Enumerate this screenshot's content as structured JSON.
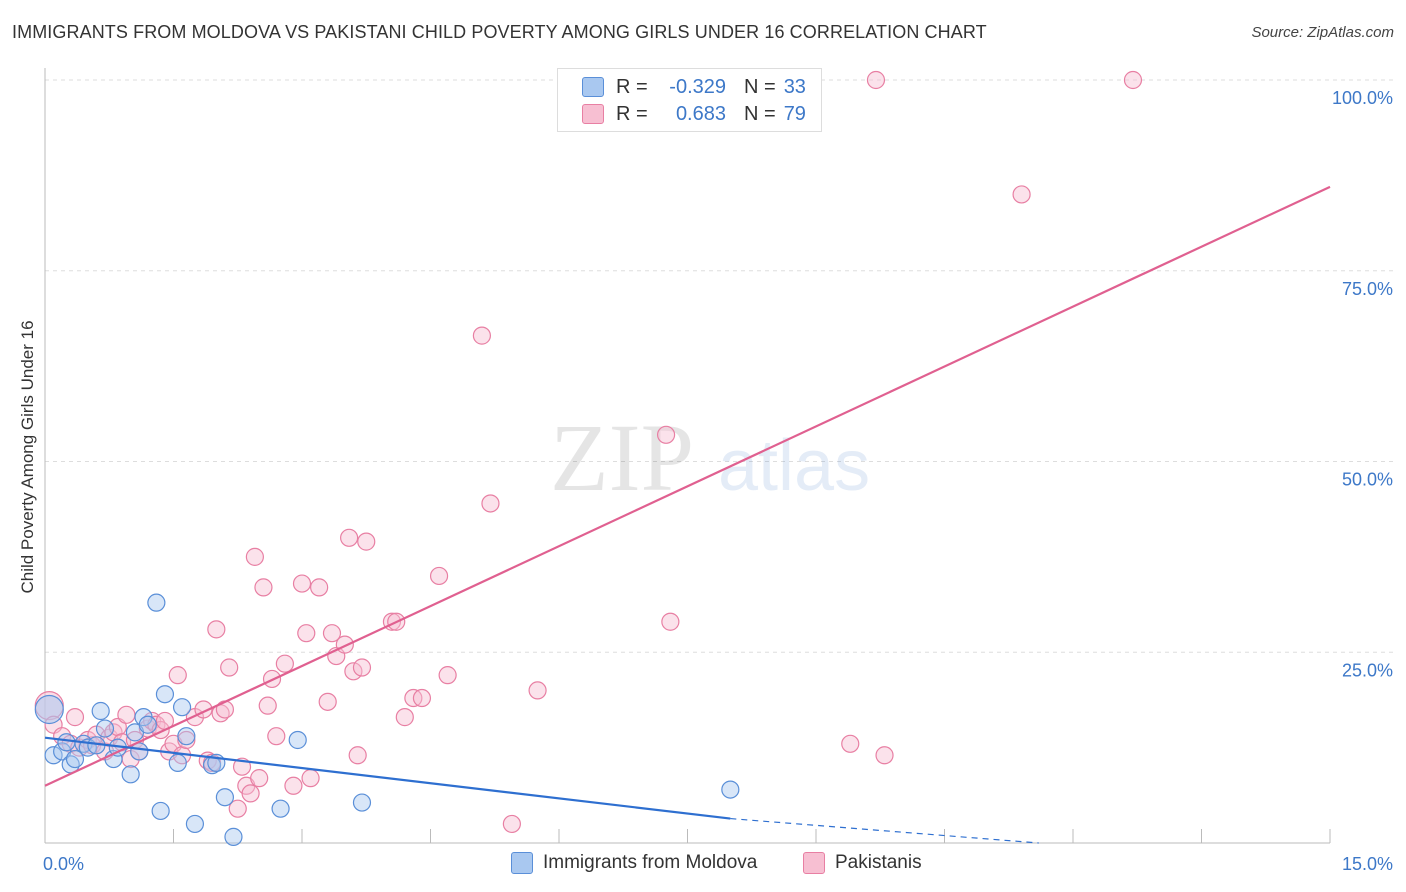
{
  "header": {
    "title": "IMMIGRANTS FROM MOLDOVA VS PAKISTANI CHILD POVERTY AMONG GIRLS UNDER 16 CORRELATION CHART",
    "source": "Source: ZipAtlas.com"
  },
  "watermark": {
    "zip": "ZIP",
    "atlas": "atlas"
  },
  "legend": {
    "r_label": "R =",
    "n_label": "N =",
    "rows": [
      {
        "r": "-0.329",
        "n": "33"
      },
      {
        "r": "0.683",
        "n": "79"
      }
    ]
  },
  "bottom_legend": {
    "moldova": "Immigrants from Moldova",
    "pakistani": "Pakistanis"
  },
  "colors": {
    "moldova_fill": "#a9c8f0",
    "moldova_stroke": "#5a8fd8",
    "moldova_line": "#2e6fd0",
    "pakistani_fill": "#f7bfd2",
    "pakistani_stroke": "#e87fa3",
    "pakistani_line": "#e06090",
    "tick_label": "#3d78c8",
    "grid": "#dddddd"
  },
  "chart_data": {
    "type": "scatter",
    "title": "IMMIGRANTS FROM MOLDOVA VS PAKISTANI CHILD POVERTY AMONG GIRLS UNDER 16 CORRELATION CHART",
    "xlabel": "",
    "ylabel": "Child Poverty Among Girls Under 16",
    "xlim": [
      0,
      15
    ],
    "ylim": [
      0,
      100
    ],
    "x_tick_labels": [
      "0.0%",
      "15.0%"
    ],
    "y_ticks": [
      25,
      50,
      75,
      100
    ],
    "y_tick_labels": [
      "25.0%",
      "50.0%",
      "75.0%",
      "100.0%"
    ],
    "series": [
      {
        "name": "Immigrants from Moldova",
        "r": -0.329,
        "n": 33,
        "trend": {
          "x0": 0,
          "y0": 13.8,
          "x1": 8.0,
          "y1": 3.2,
          "dash_to_x": 11.6,
          "dash_to_y": 0
        },
        "points": [
          [
            0.05,
            17.5
          ],
          [
            0.1,
            11.5
          ],
          [
            0.2,
            12.0
          ],
          [
            0.25,
            13.2
          ],
          [
            0.3,
            10.3
          ],
          [
            0.35,
            11.0
          ],
          [
            0.45,
            13.0
          ],
          [
            0.5,
            12.5
          ],
          [
            0.65,
            17.3
          ],
          [
            0.7,
            15.0
          ],
          [
            0.8,
            11.0
          ],
          [
            0.85,
            12.5
          ],
          [
            1.0,
            9.0
          ],
          [
            1.05,
            14.5
          ],
          [
            1.15,
            16.5
          ],
          [
            1.2,
            15.5
          ],
          [
            1.3,
            31.5
          ],
          [
            1.35,
            4.2
          ],
          [
            1.4,
            19.5
          ],
          [
            1.55,
            10.5
          ],
          [
            1.6,
            17.8
          ],
          [
            1.65,
            14.0
          ],
          [
            1.75,
            2.5
          ],
          [
            1.95,
            10.2
          ],
          [
            2.0,
            10.5
          ],
          [
            2.1,
            6.0
          ],
          [
            2.2,
            0.8
          ],
          [
            2.75,
            4.5
          ],
          [
            2.95,
            13.5
          ],
          [
            3.7,
            5.3
          ],
          [
            8.0,
            7.0
          ],
          [
            1.1,
            12.0
          ],
          [
            0.6,
            12.8
          ]
        ]
      },
      {
        "name": "Pakistanis",
        "r": 0.683,
        "n": 79,
        "trend": {
          "x0": 0,
          "y0": 7.5,
          "x1": 15,
          "y1": 86.0
        },
        "points": [
          [
            0.05,
            18.0
          ],
          [
            0.1,
            15.5
          ],
          [
            0.2,
            14.0
          ],
          [
            0.3,
            13.0
          ],
          [
            0.35,
            16.5
          ],
          [
            0.4,
            12.5
          ],
          [
            0.5,
            13.5
          ],
          [
            0.55,
            12.8
          ],
          [
            0.6,
            14.2
          ],
          [
            0.7,
            12.0
          ],
          [
            0.75,
            13.8
          ],
          [
            0.8,
            14.5
          ],
          [
            0.85,
            15.2
          ],
          [
            0.9,
            13.2
          ],
          [
            0.95,
            16.8
          ],
          [
            1.0,
            11.0
          ],
          [
            1.05,
            13.5
          ],
          [
            1.1,
            12.0
          ],
          [
            1.2,
            15.0
          ],
          [
            1.25,
            16.0
          ],
          [
            1.3,
            15.5
          ],
          [
            1.35,
            14.8
          ],
          [
            1.4,
            16.0
          ],
          [
            1.45,
            12.0
          ],
          [
            1.5,
            13.0
          ],
          [
            1.55,
            22.0
          ],
          [
            1.6,
            11.5
          ],
          [
            1.65,
            13.5
          ],
          [
            1.75,
            16.5
          ],
          [
            1.85,
            17.5
          ],
          [
            1.9,
            10.8
          ],
          [
            1.95,
            10.5
          ],
          [
            2.0,
            28.0
          ],
          [
            2.05,
            17.0
          ],
          [
            2.1,
            17.5
          ],
          [
            2.15,
            23.0
          ],
          [
            2.25,
            4.5
          ],
          [
            2.3,
            10.0
          ],
          [
            2.35,
            7.5
          ],
          [
            2.4,
            6.5
          ],
          [
            2.45,
            37.5
          ],
          [
            2.5,
            8.5
          ],
          [
            2.55,
            33.5
          ],
          [
            2.6,
            18.0
          ],
          [
            2.65,
            21.5
          ],
          [
            2.7,
            14.0
          ],
          [
            2.8,
            23.5
          ],
          [
            2.9,
            7.5
          ],
          [
            3.0,
            34.0
          ],
          [
            3.05,
            27.5
          ],
          [
            3.1,
            8.5
          ],
          [
            3.2,
            33.5
          ],
          [
            3.3,
            18.5
          ],
          [
            3.35,
            27.5
          ],
          [
            3.4,
            24.5
          ],
          [
            3.5,
            26.0
          ],
          [
            3.55,
            40.0
          ],
          [
            3.6,
            22.5
          ],
          [
            3.65,
            11.5
          ],
          [
            3.7,
            23.0
          ],
          [
            3.75,
            39.5
          ],
          [
            4.05,
            29.0
          ],
          [
            4.1,
            29.0
          ],
          [
            4.2,
            16.5
          ],
          [
            4.3,
            19.0
          ],
          [
            4.4,
            19.0
          ],
          [
            4.6,
            35.0
          ],
          [
            4.7,
            22.0
          ],
          [
            5.1,
            66.5
          ],
          [
            5.2,
            44.5
          ],
          [
            5.45,
            2.5
          ],
          [
            5.75,
            20.0
          ],
          [
            7.25,
            53.5
          ],
          [
            7.3,
            29.0
          ],
          [
            9.4,
            13.0
          ],
          [
            9.8,
            11.5
          ],
          [
            9.7,
            100.0
          ],
          [
            11.4,
            85.0
          ],
          [
            12.7,
            100.0
          ]
        ]
      }
    ]
  }
}
